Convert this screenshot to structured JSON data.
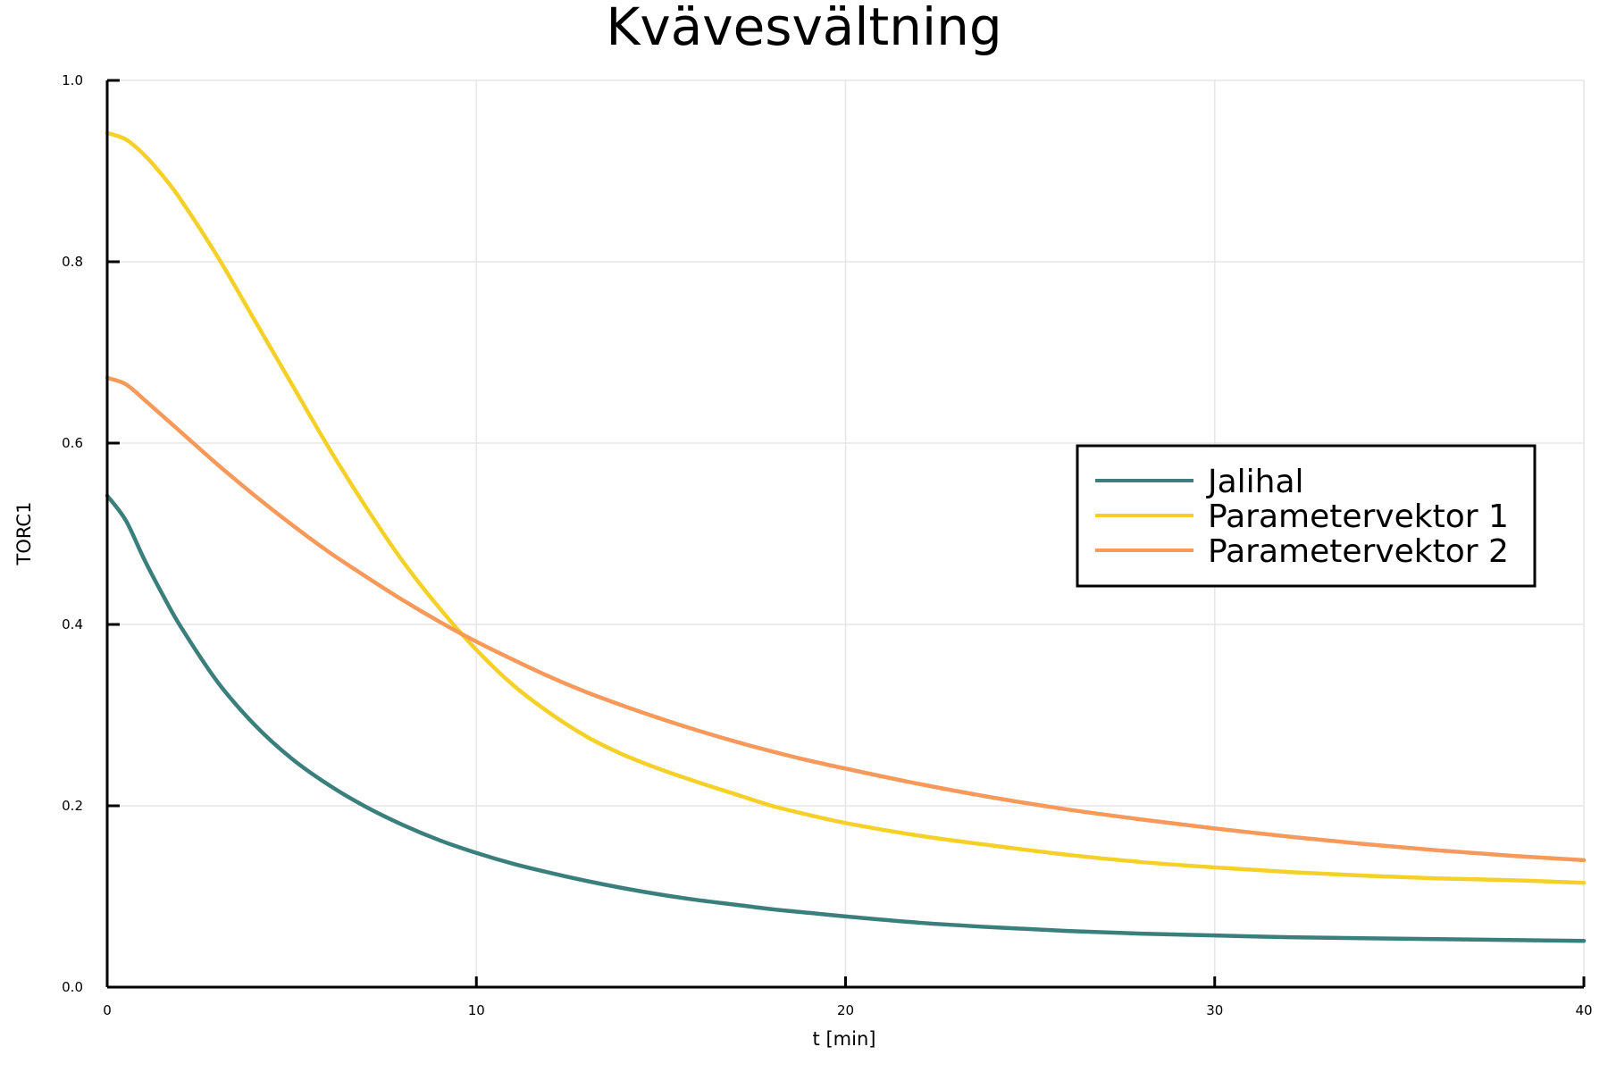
{
  "chart_data": {
    "type": "line",
    "title": "Kvävesvältning",
    "xlabel": "t [min]",
    "ylabel": "TORC1",
    "xlim": [
      0,
      40
    ],
    "ylim": [
      0,
      1
    ],
    "xticks": [
      0,
      10,
      20,
      30,
      40
    ],
    "xtick_labels": [
      "0",
      "10",
      "20",
      "30",
      "40"
    ],
    "yticks": [
      0,
      0.2,
      0.4,
      0.6,
      0.8,
      1.0
    ],
    "ytick_labels": [
      "0.0",
      "0.2",
      "0.4",
      "0.6",
      "0.8",
      "1.0"
    ],
    "grid": true,
    "legend_position": "right",
    "x": [
      0,
      0.5,
      1,
      1.5,
      2,
      3,
      4,
      5,
      6,
      7,
      8,
      9,
      10,
      11,
      12,
      13,
      14,
      15,
      16,
      17,
      18,
      19,
      20,
      22,
      24,
      26,
      28,
      30,
      32,
      34,
      36,
      38,
      40
    ],
    "series": [
      {
        "name": "Jalihal",
        "color": "#3b7f7c",
        "values": [
          0.542,
          0.515,
          0.472,
          0.433,
          0.397,
          0.336,
          0.289,
          0.252,
          0.223,
          0.199,
          0.179,
          0.162,
          0.148,
          0.136,
          0.126,
          0.117,
          0.109,
          0.102,
          0.096,
          0.091,
          0.086,
          0.082,
          0.078,
          0.071,
          0.066,
          0.062,
          0.059,
          0.057,
          0.055,
          0.054,
          0.053,
          0.052,
          0.051
        ]
      },
      {
        "name": "Parametervektor 1",
        "color": "#f5d127",
        "values": [
          0.942,
          0.935,
          0.918,
          0.895,
          0.868,
          0.805,
          0.735,
          0.665,
          0.595,
          0.53,
          0.47,
          0.418,
          0.372,
          0.333,
          0.302,
          0.276,
          0.256,
          0.24,
          0.226,
          0.213,
          0.2,
          0.19,
          0.181,
          0.167,
          0.156,
          0.146,
          0.138,
          0.132,
          0.127,
          0.123,
          0.12,
          0.118,
          0.115
        ]
      },
      {
        "name": "Parametervektor 2",
        "color": "#f7995a",
        "values": [
          0.672,
          0.665,
          0.648,
          0.63,
          0.612,
          0.576,
          0.542,
          0.51,
          0.48,
          0.453,
          0.427,
          0.403,
          0.381,
          0.361,
          0.342,
          0.325,
          0.31,
          0.296,
          0.283,
          0.271,
          0.26,
          0.25,
          0.241,
          0.224,
          0.209,
          0.196,
          0.185,
          0.175,
          0.166,
          0.158,
          0.151,
          0.145,
          0.14
        ]
      }
    ]
  }
}
